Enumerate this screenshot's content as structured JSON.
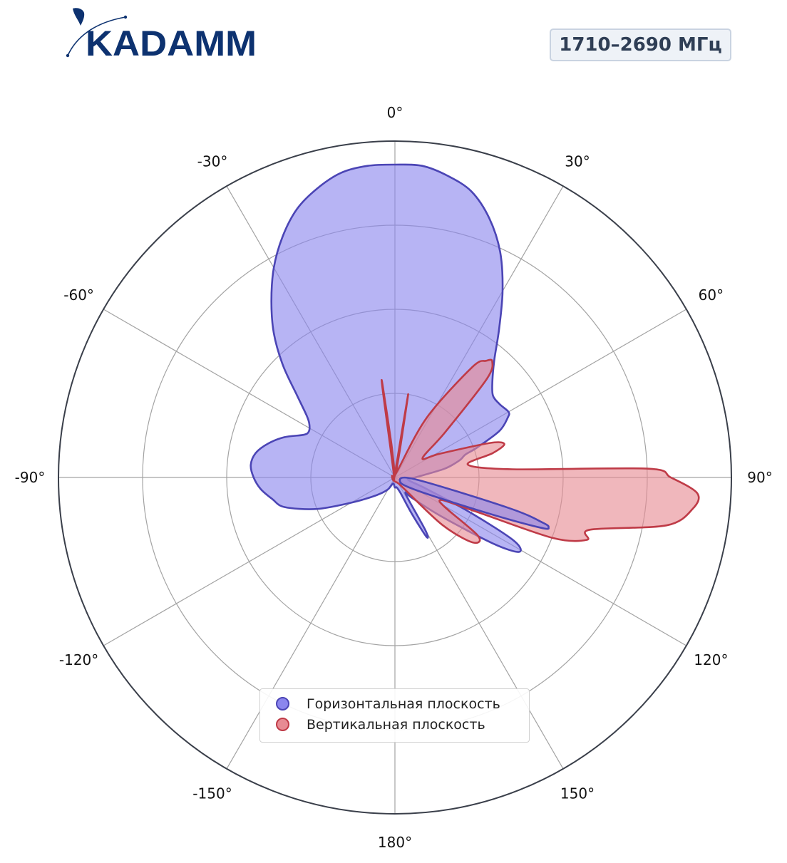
{
  "logo": {
    "text": "KADAMM",
    "color": "#0d3270"
  },
  "band": {
    "label": "1710–2690 МГц"
  },
  "colors": {
    "horizontal_stroke": "#4b45b5",
    "horizontal_fill": "#8b86ee",
    "vertical_stroke": "#bf3b47",
    "vertical_fill": "#e78b93",
    "outer_ring": "#3a3f4a",
    "grid": "#a3a3a3"
  },
  "chart_data": {
    "type": "polar",
    "angle_zero": "top",
    "direction": "clockwise",
    "angle_ticks": [
      "0°",
      "30°",
      "60°",
      "90°",
      "120°",
      "150°",
      "180°",
      "-150°",
      "-120°",
      "-90°",
      "-60°",
      "-30°"
    ],
    "radial_rings": 4,
    "radial_tick_labels": false,
    "r_range": [
      0,
      1
    ],
    "grid": true,
    "legend": {
      "placement": "bottom-center"
    },
    "series": [
      {
        "name": "Горизонтальная плоскость",
        "points": [
          [
            0,
            0.93
          ],
          [
            5,
            0.93
          ],
          [
            10,
            0.91
          ],
          [
            15,
            0.88
          ],
          [
            20,
            0.82
          ],
          [
            25,
            0.74
          ],
          [
            30,
            0.64
          ],
          [
            35,
            0.54
          ],
          [
            40,
            0.46
          ],
          [
            45,
            0.41
          ],
          [
            50,
            0.38
          ],
          [
            55,
            0.38
          ],
          [
            60,
            0.39
          ],
          [
            62,
            0.38
          ],
          [
            66,
            0.34
          ],
          [
            70,
            0.26
          ],
          [
            72,
            0.22
          ],
          [
            75,
            0.2
          ],
          [
            80,
            0.15
          ],
          [
            90,
            0.06
          ],
          [
            100,
            0.04
          ],
          [
            110,
            0.1
          ],
          [
            115,
            0.25
          ],
          [
            118,
            0.4
          ],
          [
            121,
            0.43
          ],
          [
            124,
            0.35
          ],
          [
            130,
            0.18
          ],
          [
            140,
            0.08
          ],
          [
            147,
            0.06
          ],
          [
            150,
            0.18
          ],
          [
            152,
            0.2
          ],
          [
            155,
            0.12
          ],
          [
            160,
            0.05
          ],
          [
            170,
            0.03
          ],
          [
            180,
            0.03
          ],
          [
            -170,
            0.02
          ],
          [
            -160,
            0.02
          ],
          [
            -150,
            0.04
          ],
          [
            -140,
            0.06
          ],
          [
            -130,
            0.09
          ],
          [
            -120,
            0.15
          ],
          [
            -112,
            0.25
          ],
          [
            -105,
            0.34
          ],
          [
            -100,
            0.37
          ],
          [
            -95,
            0.4
          ],
          [
            -90,
            0.42
          ],
          [
            -85,
            0.43
          ],
          [
            -80,
            0.42
          ],
          [
            -75,
            0.39
          ],
          [
            -70,
            0.35
          ],
          [
            -65,
            0.3
          ],
          [
            -62,
            0.29
          ],
          [
            -58,
            0.3
          ],
          [
            -55,
            0.32
          ],
          [
            -50,
            0.38
          ],
          [
            -45,
            0.47
          ],
          [
            -40,
            0.56
          ],
          [
            -35,
            0.64
          ],
          [
            -30,
            0.72
          ],
          [
            -25,
            0.79
          ],
          [
            -20,
            0.85
          ],
          [
            -15,
            0.89
          ],
          [
            -10,
            0.92
          ],
          [
            -5,
            0.93
          ],
          [
            0,
            0.93
          ]
        ]
      },
      {
        "name": "Вертикальная плоскость",
        "points": [
          [
            -8,
            0.25
          ],
          [
            -7.6,
            0.28
          ],
          [
            -6,
            0.1
          ],
          [
            -5,
            0.02
          ],
          [
            0,
            0.01
          ],
          [
            4,
            0.02
          ],
          [
            9,
            0.25
          ],
          [
            10,
            0.1
          ],
          [
            12,
            0.02
          ],
          [
            20,
            0.02
          ],
          [
            28,
            0.2
          ],
          [
            35,
            0.4
          ],
          [
            38,
            0.44
          ],
          [
            40,
            0.45
          ],
          [
            43,
            0.4
          ],
          [
            48,
            0.2
          ],
          [
            55,
            0.1
          ],
          [
            62,
            0.15
          ],
          [
            70,
            0.3
          ],
          [
            73,
            0.34
          ],
          [
            76,
            0.3
          ],
          [
            80,
            0.22
          ],
          [
            86,
            0.35
          ],
          [
            88,
            0.75
          ],
          [
            90,
            0.82
          ],
          [
            93,
            0.9
          ],
          [
            96,
            0.89
          ],
          [
            100,
            0.82
          ],
          [
            105,
            0.6
          ],
          [
            108,
            0.6
          ],
          [
            111,
            0.5
          ],
          [
            113,
            0.25
          ],
          [
            118,
            0.15
          ],
          [
            125,
            0.3
          ],
          [
            130,
            0.3
          ],
          [
            135,
            0.2
          ],
          [
            140,
            0.05
          ],
          [
            150,
            0.02
          ],
          [
            -150,
            0.01
          ],
          [
            -60,
            0.01
          ],
          [
            -20,
            0.01
          ],
          [
            -8,
            0.25
          ]
        ]
      },
      {
        "name": "",
        "points": [
          [
            95,
            0.06
          ],
          [
            105,
            0.35
          ],
          [
            107,
            0.46
          ],
          [
            108,
            0.48
          ],
          [
            109,
            0.46
          ],
          [
            111,
            0.3
          ],
          [
            120,
            0.08
          ],
          [
            130,
            0.02
          ],
          [
            95,
            0.06
          ]
        ]
      }
    ]
  }
}
